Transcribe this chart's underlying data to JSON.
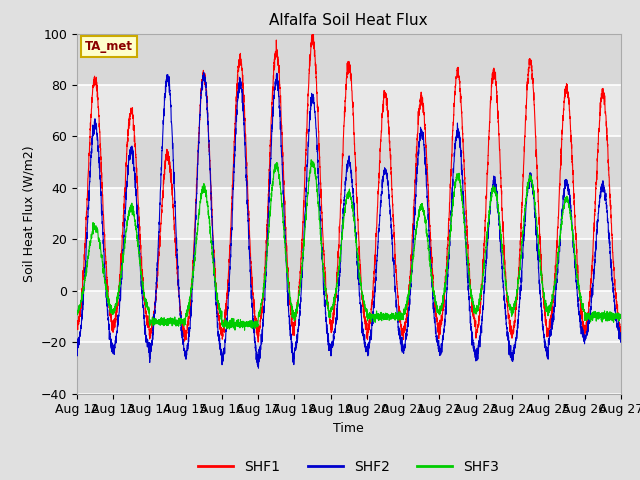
{
  "title": "Alfalfa Soil Heat Flux",
  "xlabel": "Time",
  "ylabel": "Soil Heat Flux (W/m2)",
  "ylim": [
    -40,
    100
  ],
  "annotation_text": "TA_met",
  "legend_labels": [
    "SHF1",
    "SHF2",
    "SHF3"
  ],
  "legend_colors": [
    "#ff0000",
    "#0000cc",
    "#00cc00"
  ],
  "background_color": "#e0e0e0",
  "plot_bg_color": "#e8e8e8",
  "grid_color": "#ffffff",
  "n_days": 15,
  "points_per_day": 288,
  "shf1_peaks": [
    83,
    70,
    53,
    84,
    90,
    93,
    98,
    88,
    76,
    75,
    85,
    85,
    89,
    79,
    77
  ],
  "shf2_peaks": [
    65,
    55,
    83,
    84,
    81,
    82,
    75,
    50,
    47,
    62,
    62,
    42,
    44,
    42,
    41
  ],
  "shf3_peaks": [
    25,
    32,
    0,
    40,
    0,
    49,
    50,
    38,
    0,
    33,
    45,
    40,
    44,
    36,
    0
  ],
  "shf1_troughs": [
    -17,
    -17,
    -20,
    -20,
    -20,
    -20,
    -15,
    -18,
    -20,
    -19,
    -17,
    -20,
    -20,
    -18,
    -18
  ],
  "shf2_troughs": [
    -25,
    -25,
    -28,
    -28,
    -30,
    -30,
    -26,
    -25,
    -25,
    -25,
    -27,
    -27,
    -27,
    -20,
    -20
  ],
  "shf3_troughs": [
    -10,
    -10,
    -12,
    -12,
    -13,
    -13,
    -13,
    -10,
    -10,
    -11,
    -11,
    -11,
    -11,
    -10,
    -10
  ],
  "tick_dates": [
    "Aug 12",
    "Aug 13",
    "Aug 14",
    "Aug 15",
    "Aug 16",
    "Aug 17",
    "Aug 18",
    "Aug 19",
    "Aug 20",
    "Aug 21",
    "Aug 22",
    "Aug 23",
    "Aug 24",
    "Aug 25",
    "Aug 26",
    "Aug 27"
  ]
}
